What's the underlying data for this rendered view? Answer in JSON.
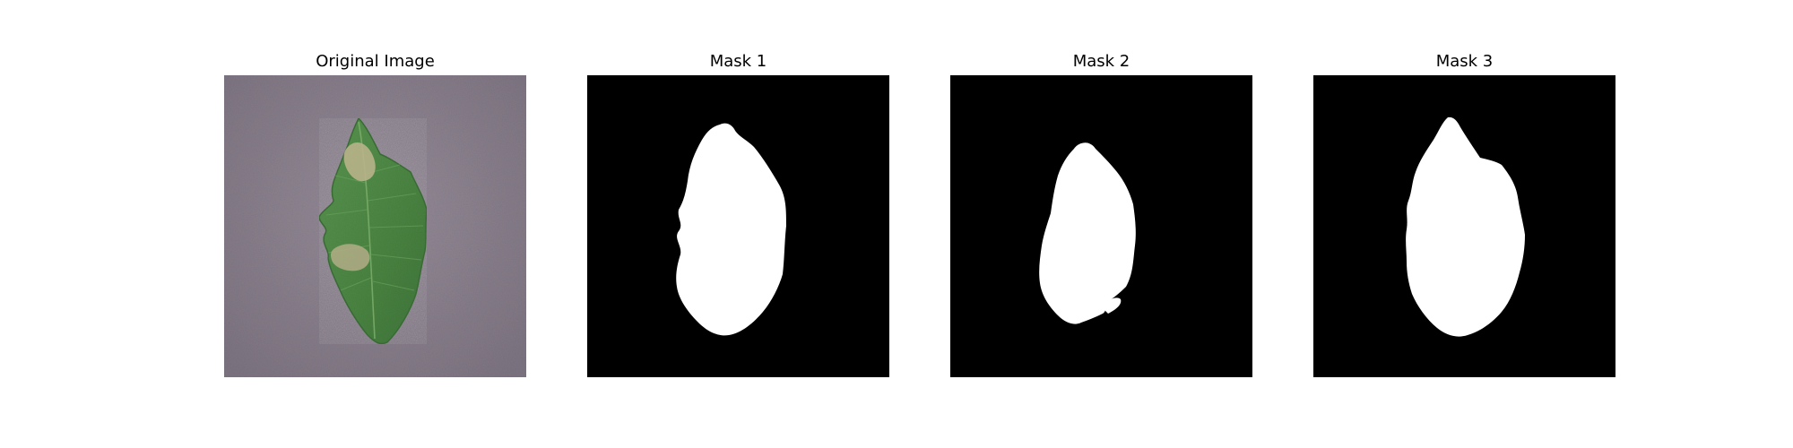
{
  "figure": {
    "panels": [
      {
        "title": "Original Image",
        "content": "leaf-photo"
      },
      {
        "title": "Mask 1",
        "content": "binary-mask"
      },
      {
        "title": "Mask 2",
        "content": "binary-mask"
      },
      {
        "title": "Mask 3",
        "content": "binary-mask"
      }
    ]
  },
  "colors": {
    "background": "#ffffff",
    "mask_background": "#000000",
    "mask_foreground": "#ffffff",
    "surface": "#8c8290",
    "leaf": "#4f8a44",
    "lesion": "#b9b48a"
  }
}
